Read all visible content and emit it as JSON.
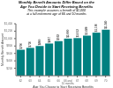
{
  "chart_data": {
    "type": "bar",
    "title": "Monthly Benefit Amounts Differ Based on the\nAge You Decide to Start Receiving Benefits",
    "subtitle": "This example assumes a benefit of $1,000\nat a full retirement age of 66 and 10 months",
    "xlabel": "Age You Choose to Start Receiving Benefits",
    "ylabel": "Monthly Benefit Amount",
    "categories": [
      "62",
      "63",
      "64",
      "65",
      "66",
      "66 and\n10 months",
      "67",
      "68",
      "69",
      "70"
    ],
    "values": [
      700,
      750,
      800,
      867,
      933,
      1000,
      1013,
      1080,
      1160,
      1240
    ],
    "value_labels": [
      "$700",
      "$750",
      "$800",
      "$867",
      "$933",
      "$1,000",
      "$1,013",
      "$1,080",
      "$1,160",
      "$1,240"
    ],
    "data_labels": true,
    "color": "#008080",
    "ylim": [
      0,
      1400
    ],
    "yticks": [
      {
        "value": 200,
        "label": "$200"
      },
      {
        "value": 400,
        "label": "$400"
      },
      {
        "value": 600,
        "label": "$600"
      },
      {
        "value": 800,
        "label": "$800"
      },
      {
        "value": 1000,
        "label": "$1,000"
      },
      {
        "value": 1200,
        "label": "$1,200"
      },
      {
        "value": 1400,
        "label": "$1,400"
      }
    ],
    "grid": false
  }
}
